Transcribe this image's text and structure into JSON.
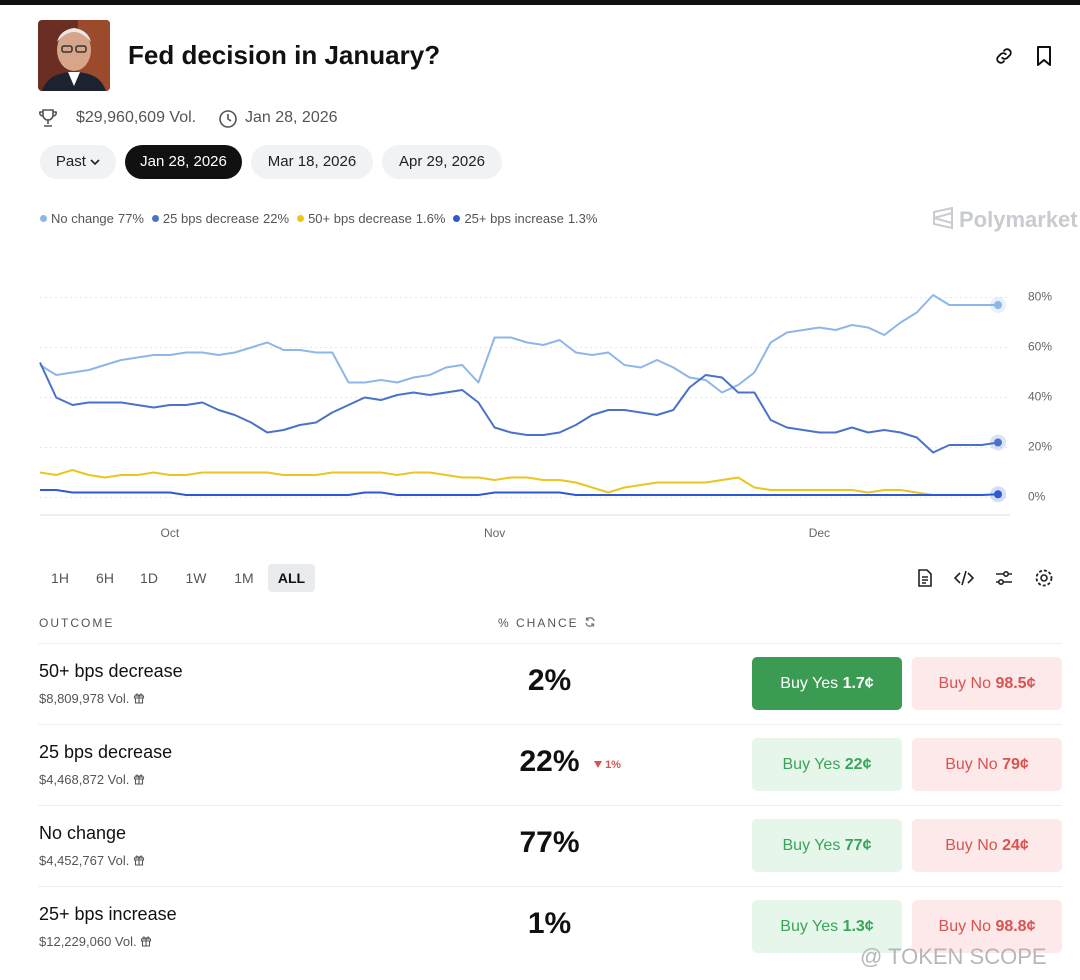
{
  "header": {
    "title": "Fed decision in January?",
    "volume": "$29,960,609 Vol.",
    "date": "Jan 28, 2026"
  },
  "tabs": [
    "Past",
    "Jan 28, 2026",
    "Mar 18, 2026",
    "Apr 29, 2026"
  ],
  "brand": "Polymarket",
  "chart_data": {
    "type": "line",
    "categories": [
      null,
      null,
      null,
      null,
      null,
      null,
      null,
      null,
      "Oct",
      null,
      null,
      null,
      null,
      null,
      null,
      null,
      null,
      null,
      null,
      null,
      null,
      null,
      null,
      null,
      null,
      null,
      null,
      null,
      "Nov",
      null,
      null,
      null,
      null,
      null,
      null,
      null,
      null,
      null,
      null,
      null,
      null,
      null,
      null,
      null,
      null,
      null,
      null,
      null,
      "Dec",
      null,
      null,
      null,
      null,
      null,
      null,
      null,
      null,
      null,
      null,
      null
    ],
    "series": [
      {
        "name": "No change",
        "legend_value": "77%",
        "color": "#8db6ea",
        "values": [
          53,
          49,
          50,
          51,
          53,
          55,
          56,
          57,
          57,
          58,
          58,
          57,
          58,
          60,
          62,
          59,
          59,
          58,
          58,
          46,
          46,
          47,
          46,
          48,
          49,
          52,
          53,
          46,
          64,
          64,
          62,
          61,
          63,
          58,
          57,
          58,
          53,
          52,
          55,
          52,
          48,
          47,
          42,
          45,
          50,
          62,
          66,
          67,
          68,
          67,
          69,
          68,
          65,
          70,
          74,
          81,
          77,
          77,
          77,
          77
        ]
      },
      {
        "name": "25 bps decrease",
        "legend_value": "22%",
        "color": "#4a72c9",
        "values": [
          54,
          40,
          37,
          38,
          38,
          38,
          37,
          36,
          37,
          37,
          38,
          35,
          33,
          30,
          26,
          27,
          29,
          30,
          34,
          37,
          40,
          39,
          41,
          42,
          41,
          42,
          43,
          38,
          28,
          26,
          25,
          25,
          26,
          29,
          33,
          35,
          35,
          34,
          33,
          35,
          44,
          49,
          48,
          42,
          42,
          31,
          28,
          27,
          26,
          26,
          28,
          26,
          27,
          26,
          24,
          18,
          21,
          21,
          21,
          22
        ]
      },
      {
        "name": "50+ bps decrease",
        "legend_value": "1.6%",
        "color": "#ecc51e",
        "values": [
          10,
          9,
          11,
          9,
          8,
          9,
          9,
          10,
          9,
          9,
          10,
          10,
          10,
          10,
          10,
          9,
          9,
          9,
          10,
          10,
          10,
          10,
          9,
          10,
          10,
          9,
          8,
          8,
          7,
          8,
          8,
          7,
          7,
          6,
          4,
          2,
          4,
          5,
          6,
          6,
          6,
          6,
          7,
          8,
          4,
          3,
          3,
          3,
          3,
          3,
          3,
          2,
          3,
          3,
          2,
          1,
          null,
          null,
          null,
          null
        ]
      },
      {
        "name": "25+ bps increase",
        "legend_value": "1.3%",
        "color": "#2f58d4",
        "values": [
          3,
          3,
          2,
          2,
          2,
          2,
          2,
          2,
          2,
          1,
          1,
          1,
          1,
          1,
          1,
          1,
          1,
          1,
          1,
          1,
          2,
          2,
          1,
          1,
          1,
          1,
          1,
          1,
          2,
          2,
          2,
          2,
          2,
          1,
          1,
          1,
          1,
          1,
          1,
          1,
          1,
          1,
          1,
          1,
          1,
          1,
          1,
          1,
          1,
          1,
          1,
          1,
          1,
          1,
          1,
          1,
          1,
          1,
          1,
          1.3
        ]
      }
    ],
    "ylim": [
      -7,
      87
    ],
    "yticks": [
      {
        "value": 0,
        "label": "0%"
      },
      {
        "value": 20,
        "label": "20%"
      },
      {
        "value": 40,
        "label": "40%"
      },
      {
        "value": 60,
        "label": "60%"
      },
      {
        "value": 80,
        "label": "80%"
      }
    ],
    "grid": true
  },
  "time_ranges": [
    "1H",
    "6H",
    "1D",
    "1W",
    "1M",
    "ALL"
  ],
  "table": {
    "headers": [
      "OUTCOME",
      "% CHANCE"
    ],
    "rows": [
      {
        "name": "50+ bps decrease",
        "volume": "$8,809,978 Vol.",
        "chance": "2%",
        "yes_label": "Buy Yes",
        "yes_price": "1.7¢",
        "no_label": "Buy No",
        "no_price": "98.5¢"
      },
      {
        "name": "25 bps decrease",
        "volume": "$4,468,872 Vol.",
        "chance": "22%",
        "change": "1%",
        "yes_label": "Buy Yes",
        "yes_price": "22¢",
        "no_label": "Buy No",
        "no_price": "79¢"
      },
      {
        "name": "No change",
        "volume": "$4,452,767 Vol.",
        "chance": "77%",
        "yes_label": "Buy Yes",
        "yes_price": "77¢",
        "no_label": "Buy No",
        "no_price": "24¢"
      },
      {
        "name": "25+ bps increase",
        "volume": "$12,229,060 Vol.",
        "chance": "1%",
        "yes_label": "Buy Yes",
        "yes_price": "1.3¢",
        "no_label": "Buy No",
        "no_price": "98.8¢"
      }
    ]
  },
  "watermark": "@ TOKEN SCOPE"
}
